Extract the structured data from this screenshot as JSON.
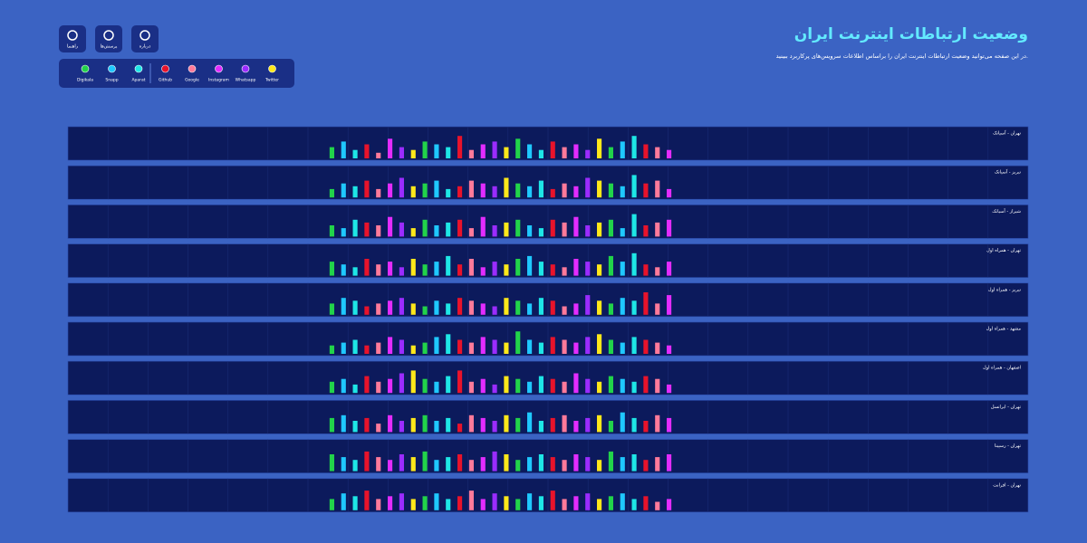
{
  "header": {
    "title": "وضعیت ارتباطات اینترنت ایران",
    "subtitle": "در این صفحه می‌توانید وضعیت ارتباطات اینترنت ایران را براساس اطلاعات سرویس‌های پرکاربرد ببینید."
  },
  "buttons": [
    {
      "label": "راهنما"
    },
    {
      "label": "پرسش‌ها"
    },
    {
      "label": "درباره"
    }
  ],
  "legend": [
    {
      "name": "Digikala",
      "color": "#22d34a"
    },
    {
      "name": "Snapp",
      "color": "#1fc8ff"
    },
    {
      "name": "Aparat",
      "color": "#1ee6e6"
    },
    {
      "name": "Github",
      "color": "#e8132b"
    },
    {
      "name": "Google",
      "color": "#ff7a9a"
    },
    {
      "name": "Instagram",
      "color": "#e32cff"
    },
    {
      "name": "Whatsapp",
      "color": "#9b2cff"
    },
    {
      "name": "Twitter",
      "color": "#ffe81a"
    }
  ],
  "ylim": [
    0,
    10
  ],
  "panels": [
    {
      "label": "تهران - آسیاتک",
      "values": [
        4,
        6,
        3,
        5,
        2,
        7,
        4,
        3,
        6,
        5,
        4,
        8,
        3,
        5,
        6,
        4,
        7,
        5,
        3,
        6,
        4,
        5,
        3,
        7,
        4,
        6,
        8,
        5,
        4,
        3
      ]
    },
    {
      "label": "تبریز - آسیاتک",
      "values": [
        3,
        5,
        4,
        6,
        3,
        5,
        7,
        4,
        5,
        6,
        3,
        4,
        6,
        5,
        4,
        7,
        5,
        4,
        6,
        3,
        5,
        4,
        7,
        6,
        5,
        4,
        8,
        5,
        6,
        3
      ]
    },
    {
      "label": "شیراز - آسیاتک",
      "values": [
        4,
        3,
        6,
        5,
        4,
        7,
        5,
        3,
        6,
        4,
        5,
        6,
        3,
        7,
        4,
        5,
        6,
        4,
        3,
        6,
        5,
        7,
        4,
        5,
        6,
        3,
        8,
        4,
        5,
        6
      ]
    },
    {
      "label": "تهران - همراه اول",
      "values": [
        5,
        4,
        3,
        6,
        4,
        5,
        3,
        6,
        4,
        5,
        7,
        4,
        6,
        3,
        5,
        4,
        6,
        7,
        5,
        4,
        3,
        6,
        5,
        4,
        7,
        5,
        8,
        4,
        3,
        5
      ]
    },
    {
      "label": "تبریز - همراه اول",
      "values": [
        4,
        6,
        5,
        3,
        4,
        5,
        6,
        4,
        3,
        5,
        4,
        6,
        5,
        4,
        3,
        6,
        5,
        4,
        6,
        5,
        3,
        4,
        7,
        5,
        4,
        6,
        5,
        8,
        4,
        7
      ]
    },
    {
      "label": "مشهد - همراه اول",
      "values": [
        3,
        4,
        5,
        3,
        4,
        6,
        5,
        3,
        4,
        6,
        7,
        5,
        4,
        6,
        5,
        4,
        8,
        5,
        4,
        6,
        5,
        4,
        6,
        7,
        5,
        4,
        6,
        5,
        4,
        3
      ]
    },
    {
      "label": "اصفهان - همراه اول",
      "values": [
        4,
        5,
        3,
        6,
        4,
        5,
        7,
        8,
        5,
        4,
        6,
        8,
        4,
        5,
        3,
        6,
        5,
        4,
        6,
        5,
        4,
        7,
        5,
        4,
        6,
        5,
        4,
        6,
        5,
        3
      ]
    },
    {
      "label": "تهران - ایرانسل",
      "values": [
        5,
        6,
        4,
        5,
        3,
        6,
        4,
        5,
        6,
        4,
        5,
        3,
        6,
        5,
        4,
        6,
        5,
        7,
        4,
        5,
        6,
        4,
        5,
        6,
        4,
        7,
        5,
        4,
        6,
        5
      ]
    },
    {
      "label": "تهران - رسپینا",
      "values": [
        6,
        5,
        4,
        7,
        5,
        4,
        6,
        5,
        7,
        4,
        5,
        6,
        4,
        5,
        7,
        6,
        4,
        5,
        6,
        5,
        4,
        6,
        5,
        4,
        7,
        5,
        6,
        4,
        5,
        6
      ]
    },
    {
      "label": "تهران - افرانت",
      "values": [
        4,
        6,
        5,
        7,
        4,
        5,
        6,
        4,
        5,
        6,
        4,
        5,
        7,
        4,
        6,
        5,
        4,
        6,
        5,
        7,
        4,
        5,
        6,
        4,
        5,
        6,
        4,
        5,
        3,
        4
      ]
    }
  ]
}
